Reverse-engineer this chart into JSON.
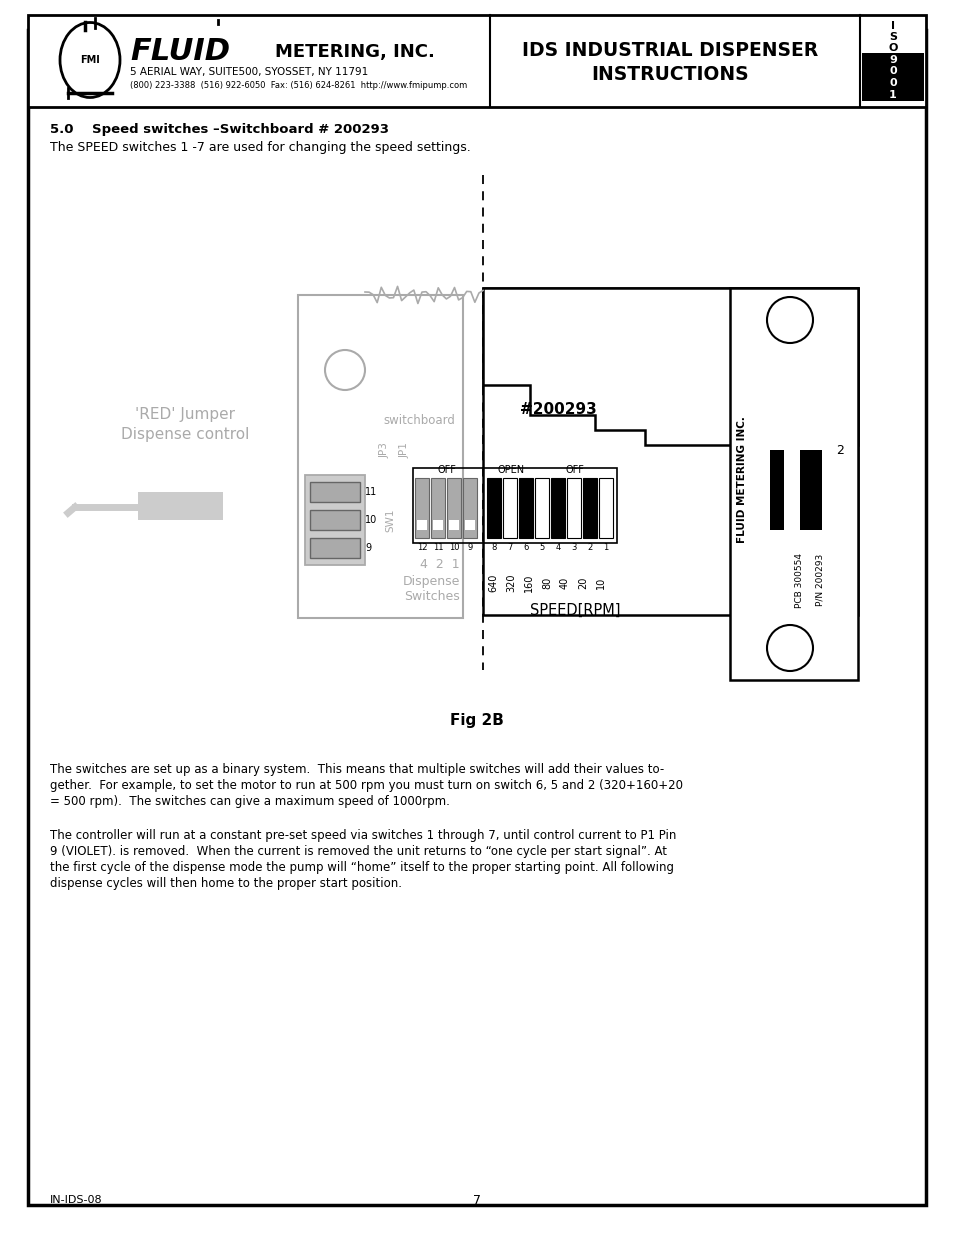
{
  "page_bg": "#ffffff",
  "header": {
    "title_line1": "IDS INDUSTRIAL DISPENSER",
    "title_line2": "INSTRUCTIONS",
    "logo_sub1": "5 AERIAL WAY, SUITE500, SYOSSET, NY 11791",
    "logo_sub2": "(800) 223-3388  (516) 922-6050  Fax: (516) 624-8261  http://www.fmipump.com",
    "iso_text": [
      "I",
      "S",
      "O",
      "9",
      "0",
      "0",
      "1"
    ]
  },
  "section_title_bold": "5.0    Speed switches –Switchboard # 200293",
  "section_desc": "The SPEED switches 1 -7 are used for changing the speed settings.",
  "fig_label": "Fig 2B",
  "para1_line1": "The switches are set up as a binary system.  This means that multiple switches will add their values to-",
  "para1_line2": "gether.  For example, to set the motor to run at 500 rpm you must turn on switch 6, 5 and 2 (320+160+20",
  "para1_line3": "= 500 rpm).  The switches can give a maximum speed of 1000rpm.",
  "para2_line1": "The controller will run at a constant pre-set speed via switches 1 through 7, until control current to P1 Pin",
  "para2_line2": "9 (VIOLET). is removed.  When the current is removed the unit returns to “one cycle per start signal”. At",
  "para2_line3": "the first cycle of the dispense mode the pump will “home” itself to the proper starting point. All following",
  "para2_line4": "dispense cycles will then home to the proper start position.",
  "footer_left": "IN-IDS-08",
  "footer_center": "7",
  "gray": "#aaaaaa",
  "lgray": "#cccccc",
  "dgray": "#666666",
  "black": "#000000",
  "white": "#ffffff"
}
